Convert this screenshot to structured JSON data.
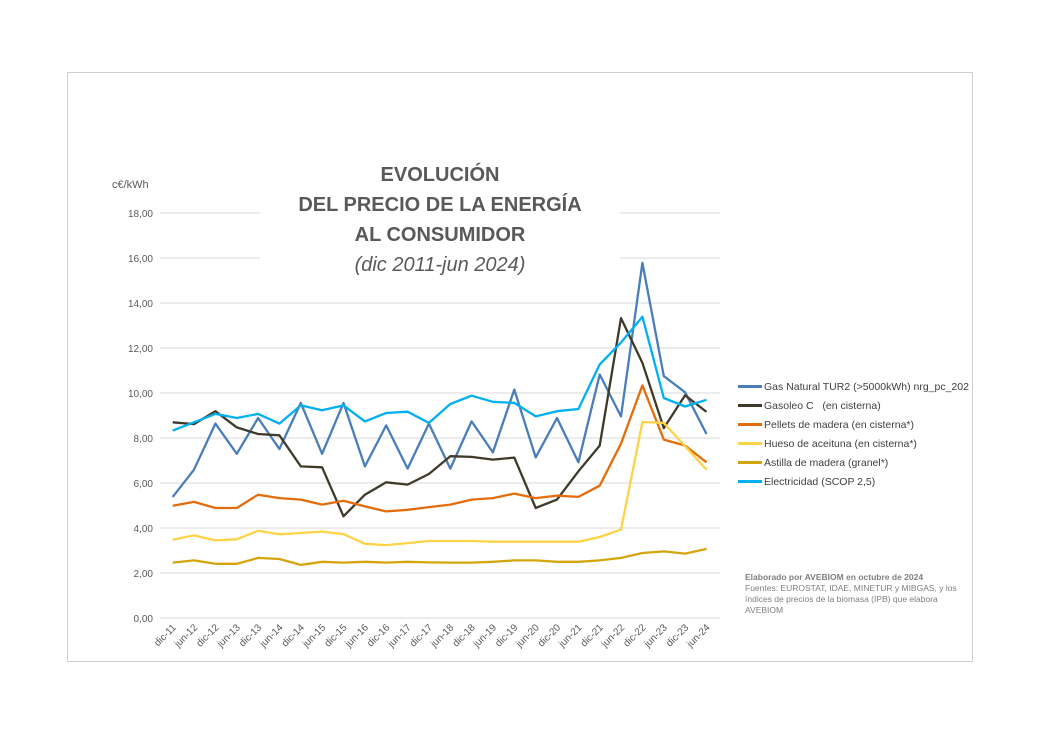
{
  "chart_data": {
    "type": "line",
    "title": [
      "EVOLUCIÓN",
      "DEL PRECIO DE LA ENERGÍA",
      "AL CONSUMIDOR"
    ],
    "subtitle": "(dic 2011-jun 2024)",
    "ylabel": "c€/kWh",
    "xlabel": "",
    "ylim": [
      0,
      18
    ],
    "yticks": [
      "0,00",
      "2,00",
      "4,00",
      "6,00",
      "8,00",
      "10,00",
      "12,00",
      "14,00",
      "16,00",
      "18,00"
    ],
    "grid": true,
    "legend_position": "right",
    "categories": [
      "dic-11",
      "jun-12",
      "dic-12",
      "jun-13",
      "dic-13",
      "jun-14",
      "dic-14",
      "jun-15",
      "dic-15",
      "jun-16",
      "dic-16",
      "jun-17",
      "dic-17",
      "jun-18",
      "dic-18",
      "jun-19",
      "dic-19",
      "jun-20",
      "dic-20",
      "jun-21",
      "dic-21",
      "jun-22",
      "dic-22",
      "jun-23",
      "dic-23",
      "jun-24"
    ],
    "series": [
      {
        "name": "Gas Natural TUR2 (>5000kWh) nrg_pc_202",
        "color": "#4a7ebb",
        "values": [
          5.38,
          6.59,
          8.64,
          7.3,
          8.89,
          7.51,
          9.56,
          7.3,
          9.56,
          6.74,
          8.56,
          6.64,
          8.64,
          6.64,
          8.74,
          7.36,
          10.15,
          7.14,
          8.89,
          6.92,
          10.82,
          8.96,
          15.78,
          10.75,
          10.03,
          8.18
        ]
      },
      {
        "name": "Gasoleo C   (en cisterna)",
        "color": "#403a2a",
        "values": [
          8.7,
          8.62,
          9.19,
          8.47,
          8.18,
          8.12,
          6.74,
          6.7,
          4.52,
          5.48,
          6.03,
          5.93,
          6.4,
          7.19,
          7.16,
          7.04,
          7.13,
          4.89,
          5.26,
          6.52,
          7.66,
          13.33,
          11.34,
          8.44,
          9.9,
          9.16
        ]
      },
      {
        "name": "Pellets de madera (en cisterna*)",
        "color": "#e46c0a",
        "values": [
          4.99,
          5.16,
          4.89,
          4.89,
          5.48,
          5.33,
          5.26,
          5.04,
          5.21,
          4.96,
          4.74,
          4.81,
          4.93,
          5.04,
          5.26,
          5.33,
          5.53,
          5.33,
          5.44,
          5.38,
          5.88,
          7.75,
          10.34,
          7.93,
          7.66,
          6.92
        ]
      },
      {
        "name": "Hueso de aceituna (en cisterna*)",
        "color": "#fdd447",
        "values": [
          3.48,
          3.67,
          3.45,
          3.5,
          3.88,
          3.72,
          3.78,
          3.84,
          3.73,
          3.3,
          3.24,
          3.33,
          3.42,
          3.42,
          3.42,
          3.39,
          3.39,
          3.39,
          3.39,
          3.39,
          3.6,
          3.93,
          8.71,
          8.67,
          7.63,
          6.59
        ]
      },
      {
        "name": "Astilla de madera (granel*)",
        "color": "#d4a50c",
        "values": [
          2.46,
          2.56,
          2.41,
          2.41,
          2.67,
          2.62,
          2.36,
          2.5,
          2.46,
          2.5,
          2.46,
          2.5,
          2.47,
          2.46,
          2.46,
          2.5,
          2.56,
          2.56,
          2.5,
          2.5,
          2.56,
          2.67,
          2.89,
          2.96,
          2.86,
          3.07
        ]
      },
      {
        "name": "Electricidad (SCOP 2,5)",
        "color": "#00b0f0",
        "values": [
          8.33,
          8.7,
          9.07,
          8.89,
          9.07,
          8.64,
          9.45,
          9.23,
          9.45,
          8.74,
          9.11,
          9.17,
          8.67,
          9.51,
          9.88,
          9.61,
          9.56,
          8.96,
          9.19,
          9.29,
          11.27,
          12.24,
          13.39,
          9.78,
          9.4,
          9.7
        ]
      }
    ]
  },
  "notes": {
    "credit": "Elaborado por AVEBIOM en octubre de 2024",
    "sources": "Fuentes: EUROSTAT, IDAE, MINETUR y MIBGAS, y los índices de precios de la biomasa (IPB) que elabora AVEBIOM"
  }
}
